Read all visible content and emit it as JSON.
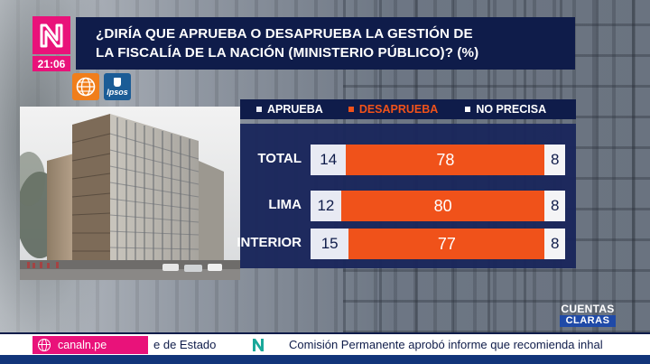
{
  "header": {
    "clock": "21:06",
    "title_line1": "¿DIRÍA QUE APRUEBA O DESAPRUEBA LA GESTIÓN DE",
    "title_line2": "LA FISCALÍA DE LA NACIÓN (MINISTERIO PÚBLICO)? (%)",
    "sources": [
      {
        "name": "america-logo-icon"
      },
      {
        "name": "ipsos-logo-icon",
        "text": "Ipsos"
      }
    ]
  },
  "legend": [
    {
      "label": "APRUEBA",
      "color": "#e8eaf3"
    },
    {
      "label": "DESAPRUEBA",
      "color": "#f0521a"
    },
    {
      "label": "NO PRECISA",
      "color": "#ffffff"
    }
  ],
  "chart_data": {
    "type": "bar",
    "stacked": true,
    "orientation": "horizontal",
    "categories": [
      "TOTAL",
      "LIMA",
      "INTERIOR"
    ],
    "series": [
      {
        "name": "APRUEBA",
        "values": [
          14,
          12,
          15
        ]
      },
      {
        "name": "DESAPRUEBA",
        "values": [
          78,
          80,
          77
        ]
      },
      {
        "name": "NO PRECISA",
        "values": [
          8,
          8,
          8
        ]
      }
    ]
  },
  "ticker": {
    "site": "canaln.pe",
    "left_text": "e de Estado",
    "right_text": "Comisión Permanente aprobó informe que recomienda inhal"
  },
  "program": {
    "line1": "CUENTAS",
    "line2": "CLARAS"
  },
  "colors": {
    "brand_pink": "#e9127a",
    "navy": "#0f1c4a",
    "panel": "#1a265c",
    "orange": "#f0521a"
  }
}
